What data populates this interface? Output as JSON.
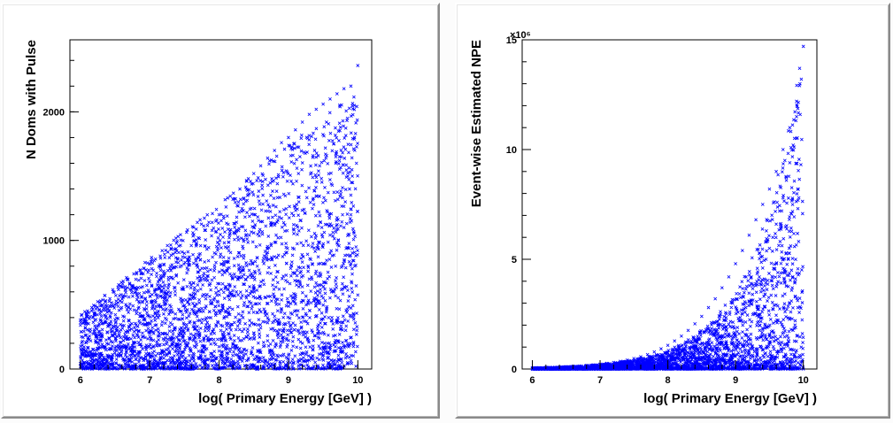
{
  "window": {
    "title": ""
  },
  "chart_data": [
    {
      "type": "scatter",
      "title": "",
      "xlabel": "log( Primary Energy [GeV] )",
      "ylabel": "N Doms with Pulse",
      "xlim": [
        5.85,
        10.2
      ],
      "ylim": [
        0,
        2560
      ],
      "xticks": [
        6,
        7,
        8,
        9,
        10
      ],
      "yticks": [
        0,
        1000,
        2000
      ],
      "ytick_labels": [
        "0",
        "1000",
        "2000"
      ],
      "y_multiplier_label": "",
      "marker": "x",
      "color": "#0000ff",
      "grid": false,
      "legend": "none",
      "series": [
        {
          "x": [
            6.0,
            6.1,
            6.2,
            6.3,
            6.4,
            6.5,
            6.6,
            6.7,
            6.8,
            6.9,
            7.0,
            7.1,
            7.2,
            7.3,
            7.4,
            7.5,
            7.6,
            7.7,
            7.8,
            7.9,
            8.0,
            8.1,
            8.2,
            8.3,
            8.4,
            8.5,
            8.6,
            8.7,
            8.8,
            8.9,
            9.0,
            9.1,
            9.2,
            9.3,
            9.4,
            9.5,
            9.6,
            9.7,
            9.8,
            9.9,
            10.0,
            9.95,
            9.85,
            9.75,
            9.65,
            9.55,
            9.45,
            9.35,
            9.25,
            9.15,
            9.05,
            8.95,
            8.85,
            8.75,
            8.65,
            8.55,
            8.45,
            8.35,
            8.25,
            8.15,
            8.05,
            7.95,
            7.85,
            7.75,
            7.65,
            7.55,
            7.45,
            7.35,
            7.25,
            7.15,
            7.05,
            6.95,
            6.85,
            6.75,
            6.65,
            6.55,
            6.45,
            6.35,
            6.25,
            6.15,
            6.05,
            9.9,
            9.8,
            9.7,
            9.6,
            9.5,
            9.4,
            9.3,
            9.2,
            9.1,
            9.0,
            8.9,
            8.8,
            8.7,
            8.6,
            8.5,
            8.4,
            8.3,
            8.2,
            8.1,
            8.0,
            7.9,
            7.8,
            7.7,
            7.6,
            7.5,
            7.4,
            7.3,
            7.2,
            7.1,
            7.0,
            6.9,
            6.8,
            6.7,
            6.6,
            6.5,
            6.4,
            6.3,
            6.2,
            6.1,
            9.98,
            9.92,
            9.88,
            9.82,
            9.78,
            9.72,
            9.68,
            9.62,
            9.58,
            9.52
          ],
          "y": [
            380,
            410,
            430,
            450,
            470,
            500,
            520,
            560,
            600,
            640,
            680,
            720,
            760,
            800,
            860,
            900,
            960,
            1020,
            1080,
            1140,
            1200,
            1260,
            1320,
            1400,
            1460,
            1520,
            1580,
            1640,
            1700,
            1760,
            1800,
            1860,
            1920,
            1980,
            2020,
            2060,
            2100,
            2140,
            2180,
            2200,
            2360,
            2050,
            1950,
            1880,
            1750,
            1660,
            1580,
            1490,
            1380,
            1300,
            1210,
            1120,
            1020,
            960,
            880,
            800,
            730,
            660,
            600,
            540,
            490,
            440,
            400,
            360,
            330,
            300,
            270,
            240,
            210,
            190,
            170,
            150,
            130,
            120,
            110,
            100,
            90,
            80,
            70,
            60,
            50,
            1200,
            1100,
            980,
            900,
            820,
            760,
            700,
            640,
            580,
            520,
            460,
            410,
            360,
            320,
            280,
            250,
            220,
            190,
            160,
            140,
            120,
            100,
            90,
            80,
            70,
            60,
            50,
            40,
            35,
            30,
            25,
            20,
            18,
            15,
            12,
            10,
            8,
            6,
            5,
            1600,
            1500,
            1400,
            1300,
            1200,
            1000,
            800,
            600,
            400,
            200
          ]
        }
      ]
    },
    {
      "type": "scatter",
      "title": "",
      "xlabel": "log( Primary Energy [GeV] )",
      "ylabel": "Event-wise Estimated NPE",
      "xlim": [
        5.85,
        10.2
      ],
      "ylim": [
        0,
        15.0
      ],
      "xticks": [
        6,
        7,
        8,
        9,
        10
      ],
      "yticks": [
        0,
        5,
        10,
        15
      ],
      "ytick_labels": [
        "0",
        "5",
        "10",
        "15"
      ],
      "y_multiplier_label": "×10⁶",
      "marker": "x",
      "color": "#0000ff",
      "grid": false,
      "legend": "none",
      "series": [
        {
          "x": [
            6.0,
            6.1,
            6.2,
            6.3,
            6.4,
            6.5,
            6.6,
            6.7,
            6.8,
            6.9,
            7.0,
            7.1,
            7.2,
            7.3,
            7.4,
            7.5,
            7.6,
            7.7,
            7.8,
            7.9,
            8.0,
            8.1,
            8.2,
            8.3,
            8.4,
            8.5,
            8.6,
            8.7,
            8.8,
            8.9,
            9.0,
            9.1,
            9.2,
            9.3,
            9.4,
            9.5,
            9.6,
            9.7,
            9.8,
            9.9,
            10.0,
            9.95,
            9.9,
            9.85,
            9.8,
            9.75,
            9.7,
            9.65,
            9.6,
            9.55,
            9.5,
            9.45,
            9.4,
            9.35,
            9.3,
            9.25,
            9.2,
            9.15,
            9.1,
            9.05,
            8.95,
            8.85,
            8.75,
            8.65,
            8.55,
            8.45,
            8.35,
            8.25,
            8.15,
            8.05,
            7.95,
            7.85,
            7.75,
            7.65,
            7.55,
            7.45,
            7.35,
            7.25,
            7.15,
            7.05,
            6.95,
            6.85,
            6.75,
            6.65,
            6.55,
            6.45,
            6.35,
            6.25,
            6.15,
            6.05,
            9.98,
            9.92,
            9.88,
            9.82,
            9.78,
            9.72,
            9.68,
            9.62,
            9.58,
            9.52,
            9.48,
            9.42,
            9.38,
            9.32,
            9.28,
            9.22,
            9.18,
            9.12,
            9.08,
            9.02
          ],
          "y": [
            0.05,
            0.06,
            0.07,
            0.08,
            0.09,
            0.1,
            0.12,
            0.14,
            0.16,
            0.19,
            0.22,
            0.26,
            0.3,
            0.35,
            0.41,
            0.48,
            0.56,
            0.66,
            0.78,
            0.92,
            1.08,
            1.28,
            1.5,
            1.76,
            2.06,
            2.4,
            2.8,
            3.2,
            3.7,
            4.2,
            4.8,
            5.4,
            6.1,
            6.8,
            7.5,
            8.2,
            9.0,
            10.0,
            11.0,
            12.2,
            14.7,
            13.0,
            11.5,
            10.2,
            9.4,
            8.6,
            7.8,
            7.2,
            6.6,
            6.0,
            5.5,
            5.0,
            4.6,
            4.2,
            3.8,
            3.4,
            3.1,
            2.8,
            2.5,
            2.2,
            1.9,
            1.6,
            1.4,
            1.2,
            1.0,
            0.85,
            0.72,
            0.6,
            0.5,
            0.42,
            0.35,
            0.28,
            0.22,
            0.18,
            0.15,
            0.12,
            0.1,
            0.08,
            0.07,
            0.06,
            0.05,
            0.04,
            0.03,
            0.03,
            0.02,
            0.02,
            0.01,
            0.01,
            0.01,
            0.01,
            3.5,
            2.8,
            2.2,
            1.8,
            1.4,
            1.1,
            0.9,
            0.7,
            0.55,
            0.45,
            0.38,
            0.3,
            0.25,
            0.2,
            0.16,
            0.13,
            0.1,
            0.08,
            0.06,
            0.05
          ]
        }
      ]
    }
  ]
}
